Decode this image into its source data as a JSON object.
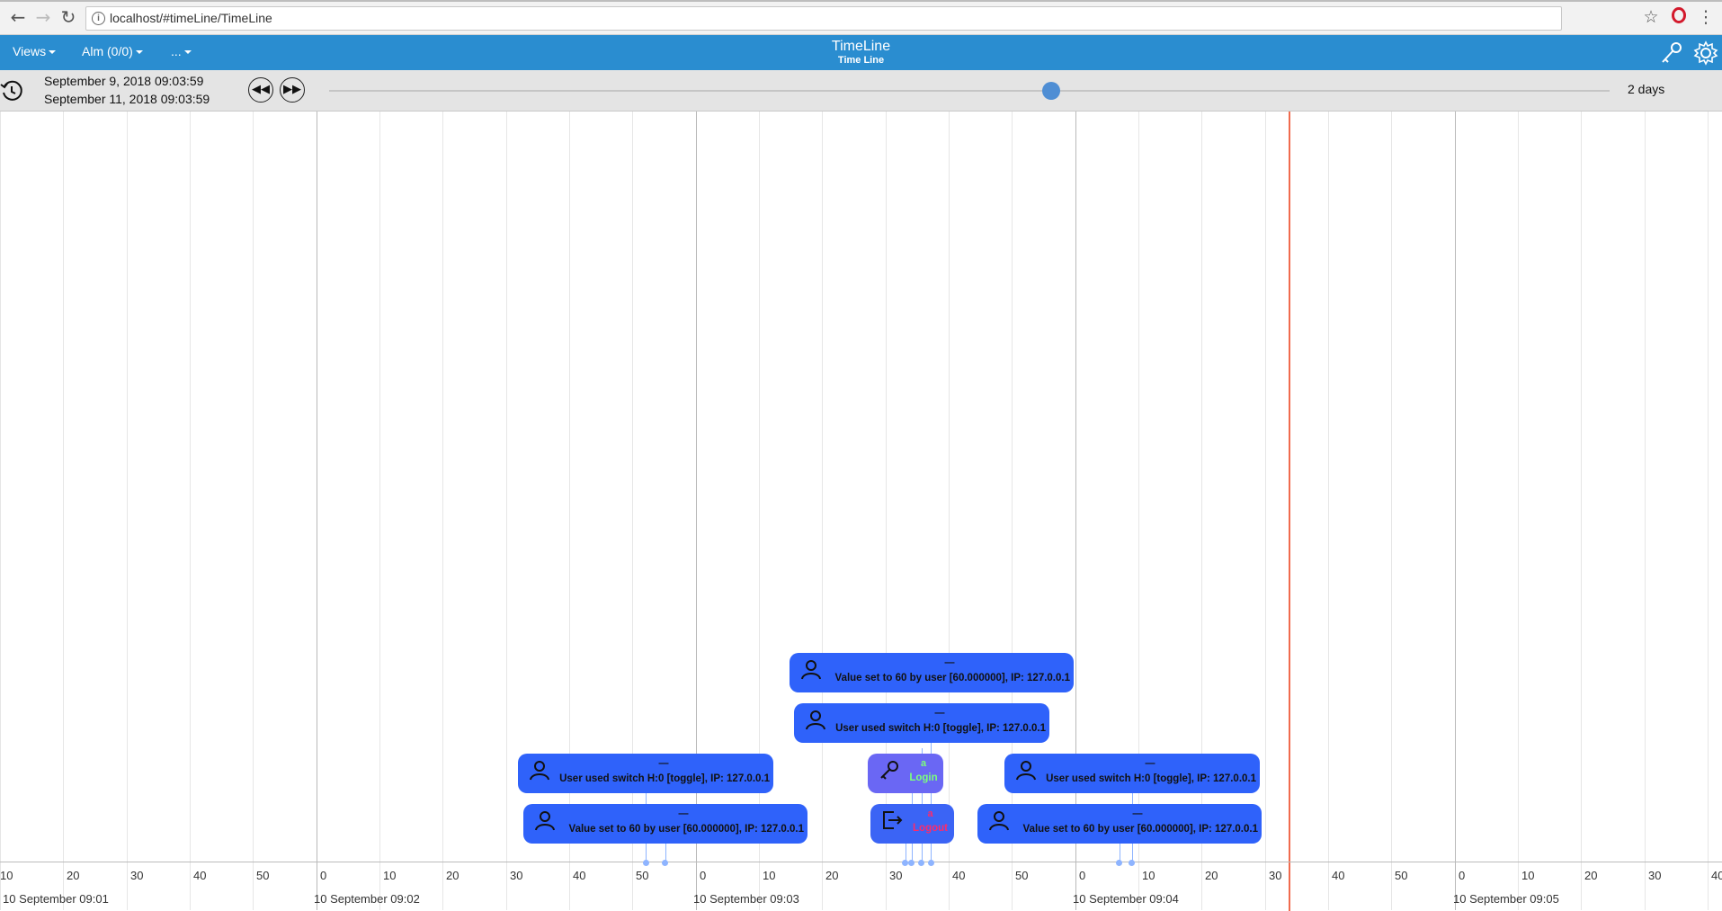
{
  "browser": {
    "url": "localhost/#timeLine/TimeLine",
    "info_glyph": "i",
    "back_glyph": "←",
    "forward_glyph": "→",
    "reload_glyph": "↻",
    "star_glyph": "☆",
    "menu_glyph": "⋮",
    "icons": [
      "back-icon",
      "forward-icon",
      "reload-icon",
      "info-icon",
      "star-icon",
      "opera-icon",
      "kebab-menu-icon"
    ]
  },
  "header": {
    "title": "TimeLine",
    "subtitle": "Time Line",
    "menus": [
      {
        "label": "Views"
      },
      {
        "label": "Alm (0/0)"
      },
      {
        "label": "..."
      }
    ],
    "icons": [
      "key-icon",
      "gear-icon"
    ],
    "color": "#2a8dd0"
  },
  "timebar": {
    "start": "September 9, 2018 09:03:59",
    "end": "September 11, 2018 09:03:59",
    "rewind_glyph": "◀◀",
    "forward_glyph": "▶▶",
    "duration": "2 days",
    "slider_fraction": 0.564,
    "icons": [
      "history-icon",
      "rewind-icon",
      "fast-forward-icon"
    ]
  },
  "axis": {
    "minor_labels": [
      "10",
      "20",
      "30",
      "40",
      "50",
      "0",
      "10",
      "20",
      "30",
      "40",
      "50",
      "0",
      "10",
      "20",
      "30",
      "40",
      "50",
      "0",
      "10",
      "20",
      "30",
      "40",
      "50",
      "0",
      "10",
      "20",
      "30",
      "40"
    ],
    "major_labels": [
      "10 September 09:01",
      "10 September 09:02",
      "10 September 09:03",
      "10 September 09:04",
      "10 September 09:05"
    ]
  },
  "events": [
    {
      "kind": "user",
      "dash": "—",
      "text": "Value set to 60 by user [60.000000], IP: 127.0.0.1"
    },
    {
      "kind": "user",
      "dash": "—",
      "text": "User used switch H:0 [toggle], IP: 127.0.0.1"
    },
    {
      "kind": "login",
      "user": "a",
      "action": "Login",
      "action_color": "#7cff7c"
    },
    {
      "kind": "user",
      "dash": "—",
      "text": "User used switch H:0 [toggle], IP: 127.0.0.1"
    },
    {
      "kind": "user",
      "dash": "—",
      "text": "User used switch H:0 [toggle], IP: 127.0.0.1"
    },
    {
      "kind": "user",
      "dash": "—",
      "text": "Value set to 60 by user [60.000000], IP: 127.0.0.1"
    },
    {
      "kind": "logout",
      "user": "a",
      "action": "Logout",
      "action_color": "#ff2a6a"
    },
    {
      "kind": "user",
      "dash": "—",
      "text": "Value set to 60 by user [60.000000], IP: 127.0.0.1"
    }
  ],
  "colors": {
    "event": "#2f62fa",
    "login_event": "#6a67f4",
    "now_line": "#f06b4e",
    "slider": "#4f8ed4"
  }
}
